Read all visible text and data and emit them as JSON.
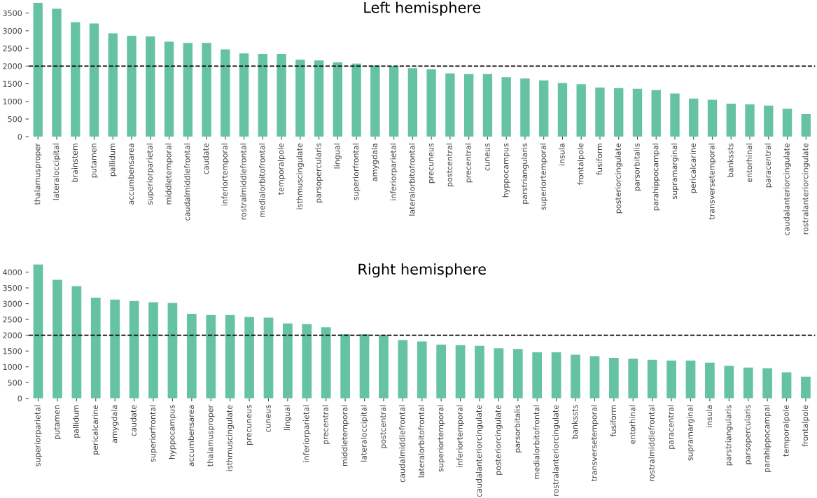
{
  "chart_data": [
    {
      "type": "bar",
      "title": "Left hemisphere",
      "color": "#66c2a5",
      "categories": [
        "thalamusproper",
        "lateraloccipital",
        "brainstem",
        "putamen",
        "pallidum",
        "accumbensarea",
        "superiorparietal",
        "middletemporal",
        "caudalmiddlefrontal",
        "caudate",
        "inferiortemporal",
        "rostralmiddlefrontal",
        "medialorbitofrontal",
        "temporalpole",
        "isthmuscingulate",
        "parsopercularis",
        "lingual",
        "superiorfrontal",
        "amygdala",
        "inferiorparietal",
        "lateralorbitofrontal",
        "precuneus",
        "postcentral",
        "precentral",
        "cuneus",
        "hyppocampus",
        "parstriangularis",
        "superiortemporal",
        "insula",
        "frontalpole",
        "fusiform",
        "posteriorcingulate",
        "parsorbitalis",
        "parahippocampal",
        "supramarginal",
        "pericalcarine",
        "transversetemporal",
        "bankssts",
        "entorhinal",
        "paracentral",
        "caudalanteriorcingulate",
        "rostralanteriorcingulate"
      ],
      "values": [
        3790,
        3625,
        3240,
        3205,
        2930,
        2860,
        2840,
        2690,
        2655,
        2655,
        2470,
        2360,
        2345,
        2345,
        2180,
        2160,
        2105,
        2070,
        2015,
        2000,
        1940,
        1905,
        1795,
        1775,
        1775,
        1685,
        1650,
        1595,
        1520,
        1485,
        1390,
        1375,
        1355,
        1320,
        1225,
        1080,
        1045,
        935,
        915,
        880,
        790,
        640
      ],
      "ylim": [
        0,
        3800
      ],
      "yticks": [
        0,
        500,
        1000,
        1500,
        2000,
        2500,
        3000,
        3500
      ],
      "ref_lines": [
        {
          "axis": "y",
          "value": 2000,
          "color": "#000000",
          "line_style": "dashed"
        }
      ]
    },
    {
      "type": "bar",
      "title": "Right hemisphere",
      "color": "#66c2a5",
      "categories": [
        "superiorparietal",
        "putamen",
        "pallidum",
        "pericalcarine",
        "amygdala",
        "caudate",
        "superiorfrontal",
        "hyppocampus",
        "accumbensarea",
        "thalamusproper",
        "isthmuscingulate",
        "precuneus",
        "cuneus",
        "lingual",
        "inferiorparietal",
        "precentral",
        "middletemporal",
        "lateraloccipital",
        "postcentral",
        "caudalmiddlefrontal",
        "lateralorbitofrontal",
        "superiortemporal",
        "inferiortemporal",
        "caudalanteriorcingulate",
        "posteriorcingulate",
        "parsorbitalis",
        "medialorbitofrontal",
        "rostralanteriorcingulate",
        "bankssts",
        "transversetemporal",
        "fusiform",
        "entorhinal",
        "rostralmiddlefrontal",
        "paracentral",
        "supramarginal",
        "insula",
        "parstriangularis",
        "parsopercularis",
        "parahippocampal",
        "temporalpole",
        "frontalpole"
      ],
      "values": [
        4245,
        3755,
        3555,
        3190,
        3130,
        3085,
        3045,
        3025,
        2680,
        2640,
        2640,
        2580,
        2560,
        2375,
        2355,
        2255,
        2030,
        2030,
        2010,
        1850,
        1805,
        1705,
        1685,
        1665,
        1585,
        1565,
        1460,
        1460,
        1380,
        1340,
        1280,
        1260,
        1220,
        1200,
        1200,
        1135,
        1035,
        975,
        955,
        830,
        690
      ],
      "ylim": [
        0,
        4250
      ],
      "yticks": [
        0,
        500,
        1000,
        1500,
        2000,
        2500,
        3000,
        3500,
        4000
      ],
      "ref_lines": [
        {
          "axis": "y",
          "value": 2000,
          "color": "#000000",
          "line_style": "dashed"
        }
      ]
    }
  ]
}
